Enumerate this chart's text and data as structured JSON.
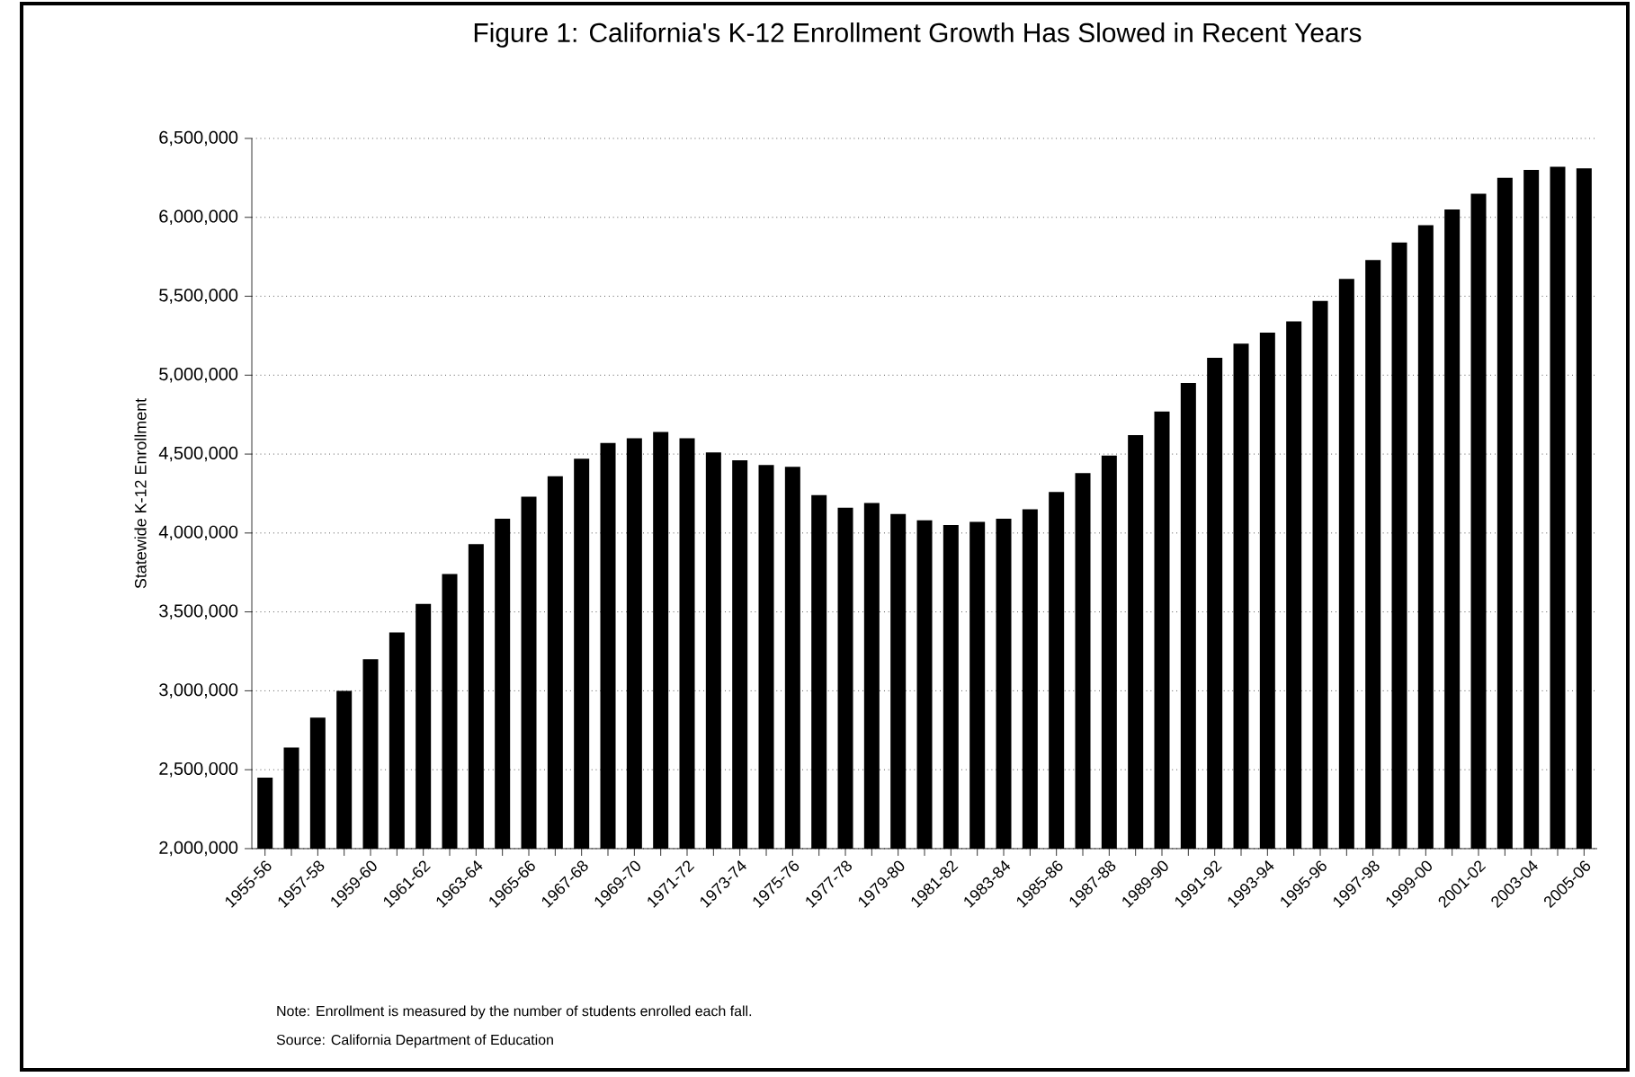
{
  "chart_data": {
    "type": "bar",
    "title": "Figure 1: California's K-12 Enrollment Growth Has Slowed in Recent Years",
    "ylabel": "Statewide K-12 Enrollment",
    "categories": [
      "1955-56",
      null,
      "1957-58",
      null,
      "1959-60",
      null,
      "1961-62",
      null,
      "1963-64",
      null,
      "1965-66",
      null,
      "1967-68",
      null,
      "1969-70",
      null,
      "1971-72",
      null,
      "1973-74",
      null,
      "1975-76",
      null,
      "1977-78",
      null,
      "1979-80",
      null,
      "1981-82",
      null,
      "1983-84",
      null,
      "1985-86",
      null,
      "1987-88",
      null,
      "1989-90",
      null,
      "1991-92",
      null,
      "1993-94",
      null,
      "1995-96",
      null,
      "1997-98",
      null,
      "1999-00",
      null,
      "2001-02",
      null,
      "2003-04",
      null,
      "2005-06"
    ],
    "values": [
      2450000,
      2640000,
      2830000,
      3000000,
      3200000,
      3370000,
      3550000,
      3740000,
      3930000,
      4090000,
      4230000,
      4360000,
      4470000,
      4570000,
      4600000,
      4640000,
      4600000,
      4510000,
      4460000,
      4430000,
      4420000,
      4240000,
      4160000,
      4190000,
      4120000,
      4080000,
      4050000,
      4070000,
      4090000,
      4150000,
      4260000,
      4380000,
      4490000,
      4620000,
      4770000,
      4950000,
      5110000,
      5200000,
      5270000,
      5340000,
      5470000,
      5610000,
      5730000,
      5840000,
      5950000,
      6050000,
      6150000,
      6250000,
      6300000,
      6320000,
      6310000
    ],
    "color": "#000000",
    "ylim": [
      2000000,
      6500000
    ],
    "yticks": [
      {
        "value": 2000000,
        "label": "2,000,000"
      },
      {
        "value": 2500000,
        "label": "2,500,000"
      },
      {
        "value": 3000000,
        "label": "3,000,000"
      },
      {
        "value": 3500000,
        "label": "3,500,000"
      },
      {
        "value": 4000000,
        "label": "4,000,000"
      },
      {
        "value": 4500000,
        "label": "4,500,000"
      },
      {
        "value": 5000000,
        "label": "5,000,000"
      },
      {
        "value": 5500000,
        "label": "5,500,000"
      },
      {
        "value": 6000000,
        "label": "6,000,000"
      },
      {
        "value": 6500000,
        "label": "6,500,000"
      }
    ],
    "grid": "y",
    "annotations": [
      "Note: Enrollment is measured by the number of students enrolled each fall.",
      "Source: California Department of Education"
    ]
  }
}
